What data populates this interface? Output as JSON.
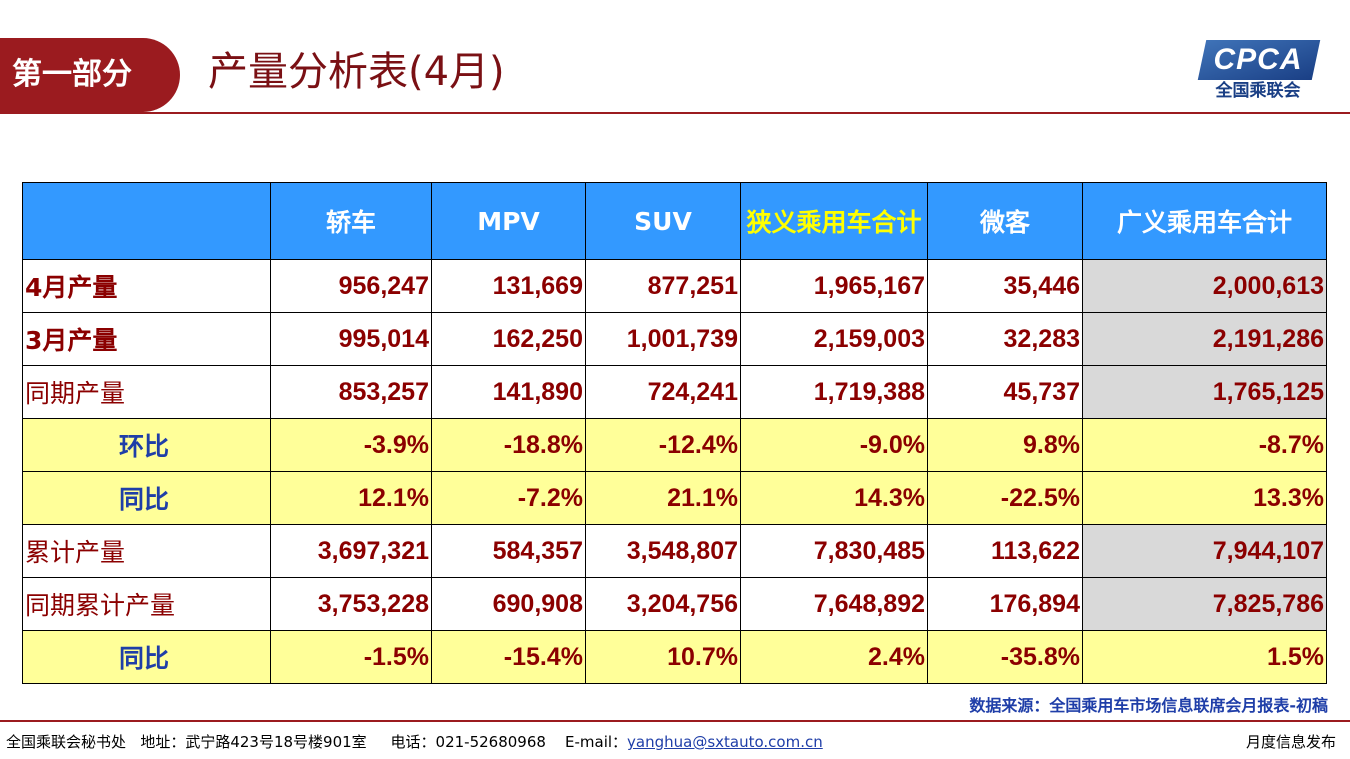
{
  "header": {
    "section_badge": "第一部分",
    "title": "产量分析表(4月)",
    "logo_text": "CPCA",
    "logo_subtext": "全国乘联会"
  },
  "table": {
    "columns": [
      "",
      "轿车",
      "MPV",
      "SUV",
      "狭义乘用车合计",
      "微客",
      "广义乘用车合计"
    ],
    "rows": [
      {
        "label": "4月产量",
        "values": [
          "956,247",
          "131,669",
          "877,251",
          "1,965,167",
          "35,446",
          "2,000,613"
        ]
      },
      {
        "label": "3月产量",
        "values": [
          "995,014",
          "162,250",
          "1,001,739",
          "2,159,003",
          "32,283",
          "2,191,286"
        ]
      },
      {
        "label": "同期产量",
        "values": [
          "853,257",
          "141,890",
          "724,241",
          "1,719,388",
          "45,737",
          "1,765,125"
        ]
      },
      {
        "label": "环比",
        "values": [
          "-3.9%",
          "-18.8%",
          "-12.4%",
          "-9.0%",
          "9.8%",
          "-8.7%"
        ]
      },
      {
        "label": "同比",
        "values": [
          "12.1%",
          "-7.2%",
          "21.1%",
          "14.3%",
          "-22.5%",
          "13.3%"
        ]
      },
      {
        "label": "累计产量",
        "values": [
          "3,697,321",
          "584,357",
          "3,548,807",
          "7,830,485",
          "113,622",
          "7,944,107"
        ]
      },
      {
        "label": "同期累计产量",
        "values": [
          "3,753,228",
          "690,908",
          "3,204,756",
          "7,648,892",
          "176,894",
          "7,825,786"
        ]
      },
      {
        "label": "同比",
        "values": [
          "-1.5%",
          "-15.4%",
          "10.7%",
          "2.4%",
          "-35.8%",
          "1.5%"
        ]
      }
    ]
  },
  "source_note": "数据来源：全国乘用车市场信息联席会月报表-初稿",
  "footer": {
    "org": "全国乘联会秘书处",
    "address": "地址：武宁路423号18号楼901室",
    "phone": "电话：021-52680968",
    "email_label": "E-mail：",
    "email": "yanghua@sxtauto.com.cn",
    "right": "月度信息发布"
  },
  "colors": {
    "brand_red": "#9b1b1f",
    "header_blue": "#3399ff",
    "highlight_yellow": "#ffff99",
    "value_red": "#8b0000",
    "label_blue": "#1f3ea8"
  }
}
